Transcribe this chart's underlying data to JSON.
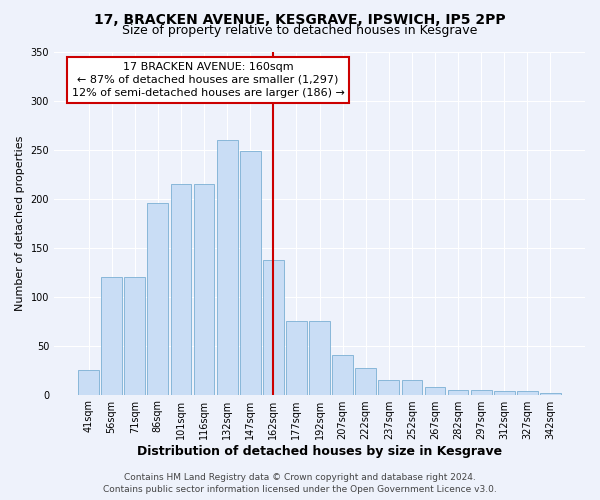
{
  "title": "17, BRACKEN AVENUE, KESGRAVE, IPSWICH, IP5 2PP",
  "subtitle": "Size of property relative to detached houses in Kesgrave",
  "xlabel": "Distribution of detached houses by size in Kesgrave",
  "ylabel": "Number of detached properties",
  "categories": [
    "41sqm",
    "56sqm",
    "71sqm",
    "86sqm",
    "101sqm",
    "116sqm",
    "132sqm",
    "147sqm",
    "162sqm",
    "177sqm",
    "192sqm",
    "207sqm",
    "222sqm",
    "237sqm",
    "252sqm",
    "267sqm",
    "282sqm",
    "297sqm",
    "312sqm",
    "327sqm",
    "342sqm"
  ],
  "values": [
    25,
    120,
    120,
    195,
    215,
    215,
    260,
    248,
    137,
    75,
    75,
    40,
    27,
    15,
    15,
    8,
    5,
    5,
    4,
    4,
    2
  ],
  "bar_color": "#c9ddf5",
  "bar_edge_color": "#7bafd4",
  "property_line_index": 8,
  "property_label": "17 BRACKEN AVENUE: 160sqm",
  "annotation_line1": "← 87% of detached houses are smaller (1,297)",
  "annotation_line2": "12% of semi-detached houses are larger (186) →",
  "annotation_box_color": "#ffffff",
  "annotation_box_edge": "#cc0000",
  "vline_color": "#cc0000",
  "footer_line1": "Contains HM Land Registry data © Crown copyright and database right 2024.",
  "footer_line2": "Contains public sector information licensed under the Open Government Licence v3.0.",
  "background_color": "#eef2fb",
  "grid_color": "#ffffff",
  "ylim": [
    0,
    350
  ],
  "yticks": [
    0,
    50,
    100,
    150,
    200,
    250,
    300,
    350
  ],
  "title_fontsize": 10,
  "subtitle_fontsize": 9,
  "axis_ylabel_fontsize": 8,
  "axis_xlabel_fontsize": 9,
  "tick_fontsize": 7,
  "footer_fontsize": 6.5,
  "annotation_fontsize": 8
}
